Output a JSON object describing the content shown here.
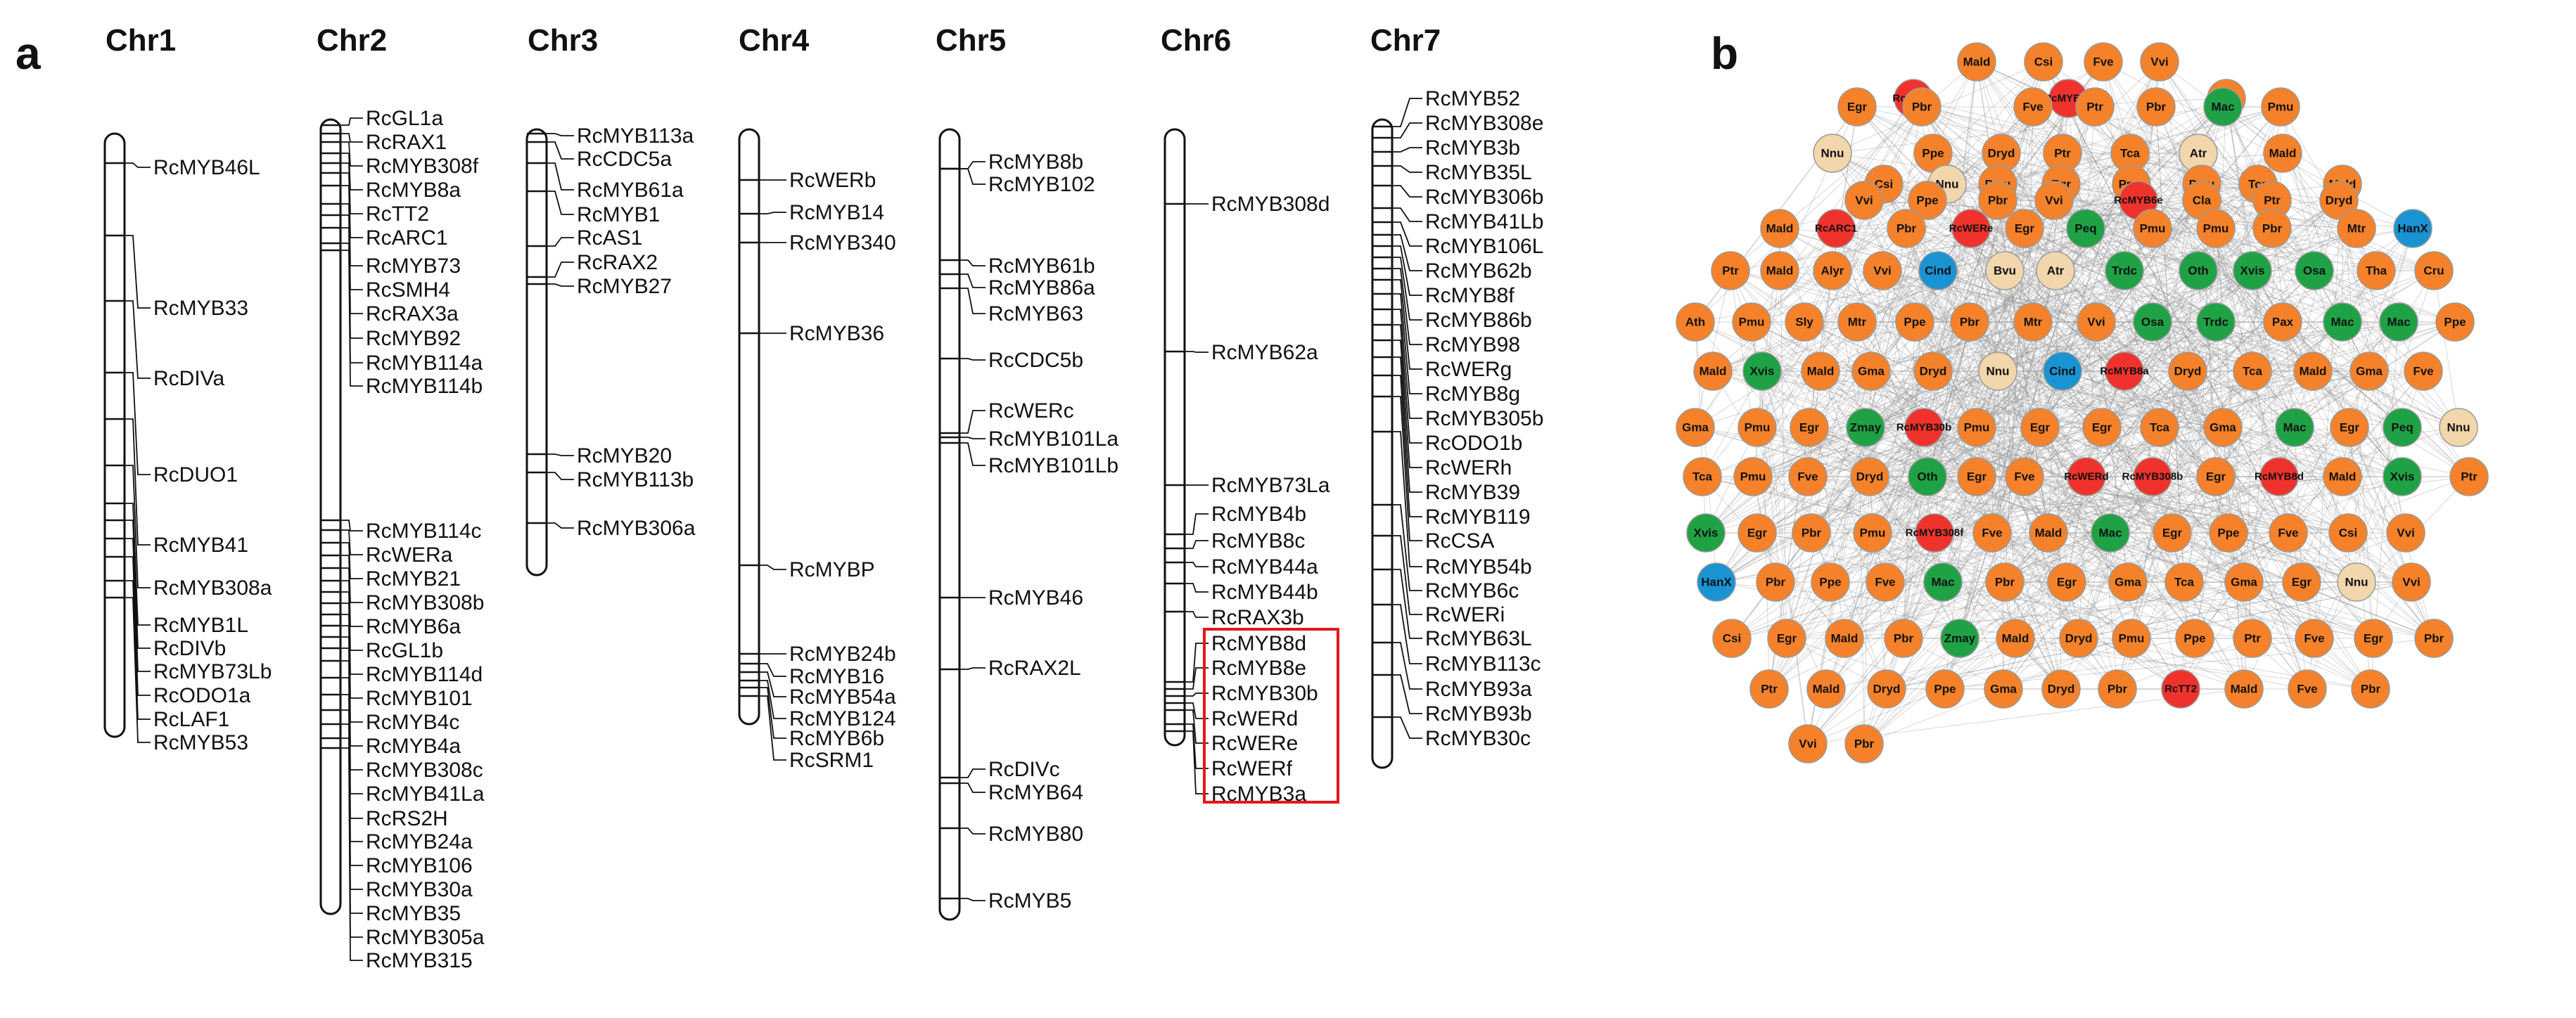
{
  "panel_a": {
    "letter": "a",
    "chromosomes": [
      {
        "name": "Chr1",
        "genes": [
          "RcMYB46L",
          "RcMYB33",
          "RcDIVa",
          "RcDUO1",
          "RcMYB41",
          "RcMYB308a",
          "RcMYB1L",
          "RcDIVb",
          "RcMYB73Lb",
          "RcODO1a",
          "RcLAF1",
          "RcMYB53"
        ]
      },
      {
        "name": "Chr2",
        "genes": [
          "RcGL1a",
          "RcRAX1",
          "RcMYB308f",
          "RcMYB8a",
          "RcTT2",
          "RcARC1",
          "RcMYB73",
          "RcSMH4",
          "RcRAX3a",
          "RcMYB92",
          "RcMYB114a",
          "RcMYB114b",
          "RcMYB114c",
          "RcWERa",
          "RcMYB21",
          "RcMYB308b",
          "RcMYB6a",
          "RcGL1b",
          "RcMYB114d",
          "RcMYB101",
          "RcMYB4c",
          "RcMYB4a",
          "RcMYB308c",
          "RcMYB41La",
          "RcRS2H",
          "RcMYB24a",
          "RcMYB106",
          "RcMYB30a",
          "RcMYB35",
          "RcMYB305a",
          "RcMYB315"
        ]
      },
      {
        "name": "Chr3",
        "genes": [
          "RcMYB113a",
          "RcCDC5a",
          "RcMYB61a",
          "RcMYB1",
          "RcAS1",
          "RcRAX2",
          "RcMYB27",
          "RcMYB20",
          "RcMYB113b",
          "RcMYB306a"
        ]
      },
      {
        "name": "Chr4",
        "genes": [
          "RcWERb",
          "RcMYB14",
          "RcMYB340",
          "RcMYB36",
          "RcMYBP",
          "RcMYB24b",
          "RcMYB16",
          "RcMYB54a",
          "RcMYB124",
          "RcMYB6b",
          "RcSRM1"
        ]
      },
      {
        "name": "Chr5",
        "genes": [
          "RcMYB8b",
          "RcMYB102",
          "RcMYB61b",
          "RcMYB86a",
          "RcMYB63",
          "RcCDC5b",
          "RcWERc",
          "RcMYB101La",
          "RcMYB101Lb",
          "RcMYB46",
          "RcRAX2L",
          "RcDIVc",
          "RcMYB64",
          "RcMYB80",
          "RcMYB5"
        ]
      },
      {
        "name": "Chr6",
        "genes": [
          "RcMYB308d",
          "RcMYB62a",
          "RcMYB73La",
          "RcMYB4b",
          "RcMYB8c",
          "RcMYB44a",
          "RcMYB44b",
          "RcRAX3b",
          "RcMYB8d",
          "RcMYB8e",
          "RcMYB30b",
          "RcWERd",
          "RcWERe",
          "RcWERf",
          "RcMYB3a"
        ]
      },
      {
        "name": "Chr7",
        "genes": [
          "RcMYB52",
          "RcMYB308e",
          "RcMYB3b",
          "RcMYB35L",
          "RcMYB306b",
          "RcMYB41Lb",
          "RcMYB106L",
          "RcMYB62b",
          "RcMYB8f",
          "RcMYB86b",
          "RcMYB98",
          "RcWERg",
          "RcMYB8g",
          "RcMYB305b",
          "RcODO1b",
          "RcWERh",
          "RcMYB39",
          "RcMYB119",
          "RcCSA",
          "RcMYB54b",
          "RcMYB6c",
          "RcWERi",
          "RcMYB63L",
          "RcMYB113c",
          "RcMYB93a",
          "RcMYB93b",
          "RcMYB30c"
        ]
      }
    ]
  },
  "panel_b": {
    "letter": "b",
    "colors": {
      "red": "#f0322d",
      "orange": "#f5822a",
      "green": "#1fa245",
      "blue": "#1a93d3",
      "beige": "#f2d6ac"
    },
    "nodes": [
      {
        "label": "Mald",
        "c": "orange"
      },
      {
        "label": "Csi",
        "c": "orange"
      },
      {
        "label": "Fve",
        "c": "orange"
      },
      {
        "label": "Vvi",
        "c": "orange"
      },
      {
        "label": "RcWERf",
        "c": "red"
      },
      {
        "label": "RcMYB6a",
        "c": "red"
      },
      {
        "label": "Tca",
        "c": "orange"
      },
      {
        "label": "Egr",
        "c": "orange"
      },
      {
        "label": "Pbr",
        "c": "orange"
      },
      {
        "label": "Fve",
        "c": "orange"
      },
      {
        "label": "Ptr",
        "c": "orange"
      },
      {
        "label": "Pbr",
        "c": "orange"
      },
      {
        "label": "Mac",
        "c": "green"
      },
      {
        "label": "Pmu",
        "c": "orange"
      },
      {
        "label": "Nnu",
        "c": "beige"
      },
      {
        "label": "Ppe",
        "c": "orange"
      },
      {
        "label": "Dryd",
        "c": "orange"
      },
      {
        "label": "Ptr",
        "c": "orange"
      },
      {
        "label": "Tca",
        "c": "orange"
      },
      {
        "label": "Atr",
        "c": "beige"
      },
      {
        "label": "Mald",
        "c": "orange"
      },
      {
        "label": "Csi",
        "c": "orange"
      },
      {
        "label": "Nnu",
        "c": "beige"
      },
      {
        "label": "Pmu",
        "c": "orange"
      },
      {
        "label": "Egr",
        "c": "orange"
      },
      {
        "label": "Pmu",
        "c": "orange"
      },
      {
        "label": "Pmu",
        "c": "orange"
      },
      {
        "label": "Tca",
        "c": "orange"
      },
      {
        "label": "Mald",
        "c": "orange"
      },
      {
        "label": "Vvi",
        "c": "orange"
      },
      {
        "label": "Ppe",
        "c": "orange"
      },
      {
        "label": "Pbr",
        "c": "orange"
      },
      {
        "label": "Vvi",
        "c": "orange"
      },
      {
        "label": "RcMYB6e",
        "c": "red"
      },
      {
        "label": "Cla",
        "c": "orange"
      },
      {
        "label": "Ptr",
        "c": "orange"
      },
      {
        "label": "Dryd",
        "c": "orange"
      },
      {
        "label": "Mald",
        "c": "orange"
      },
      {
        "label": "RcARC1",
        "c": "red"
      },
      {
        "label": "Pbr",
        "c": "orange"
      },
      {
        "label": "RcWERe",
        "c": "red"
      },
      {
        "label": "Egr",
        "c": "orange"
      },
      {
        "label": "Peq",
        "c": "green"
      },
      {
        "label": "Pmu",
        "c": "orange"
      },
      {
        "label": "Pmu",
        "c": "orange"
      },
      {
        "label": "Pbr",
        "c": "orange"
      },
      {
        "label": "Mtr",
        "c": "orange"
      },
      {
        "label": "HanX",
        "c": "blue"
      },
      {
        "label": "Ptr",
        "c": "orange"
      },
      {
        "label": "Mald",
        "c": "orange"
      },
      {
        "label": "Alyr",
        "c": "orange"
      },
      {
        "label": "Vvi",
        "c": "orange"
      },
      {
        "label": "Cind",
        "c": "blue"
      },
      {
        "label": "Bvu",
        "c": "beige"
      },
      {
        "label": "Atr",
        "c": "beige"
      },
      {
        "label": "Trdc",
        "c": "green"
      },
      {
        "label": "Oth",
        "c": "green"
      },
      {
        "label": "Xvis",
        "c": "green"
      },
      {
        "label": "Osa",
        "c": "green"
      },
      {
        "label": "Tha",
        "c": "orange"
      },
      {
        "label": "Cru",
        "c": "orange"
      },
      {
        "label": "Ath",
        "c": "orange"
      },
      {
        "label": "Pmu",
        "c": "orange"
      },
      {
        "label": "Sly",
        "c": "orange"
      },
      {
        "label": "Mtr",
        "c": "orange"
      },
      {
        "label": "Ppe",
        "c": "orange"
      },
      {
        "label": "Pbr",
        "c": "orange"
      },
      {
        "label": "Mtr",
        "c": "orange"
      },
      {
        "label": "Vvi",
        "c": "orange"
      },
      {
        "label": "Osa",
        "c": "green"
      },
      {
        "label": "Trdc",
        "c": "green"
      },
      {
        "label": "Pax",
        "c": "orange"
      },
      {
        "label": "Mac",
        "c": "green"
      },
      {
        "label": "Mac",
        "c": "green"
      },
      {
        "label": "Ppe",
        "c": "orange"
      },
      {
        "label": "Mald",
        "c": "orange"
      },
      {
        "label": "Xvis",
        "c": "green"
      },
      {
        "label": "Mald",
        "c": "orange"
      },
      {
        "label": "Gma",
        "c": "orange"
      },
      {
        "label": "Dryd",
        "c": "orange"
      },
      {
        "label": "Nnu",
        "c": "beige"
      },
      {
        "label": "Cind",
        "c": "blue"
      },
      {
        "label": "RcMYB8a",
        "c": "red"
      },
      {
        "label": "Dryd",
        "c": "orange"
      },
      {
        "label": "Tca",
        "c": "orange"
      },
      {
        "label": "Mald",
        "c": "orange"
      },
      {
        "label": "Gma",
        "c": "orange"
      },
      {
        "label": "Fve",
        "c": "orange"
      },
      {
        "label": "Gma",
        "c": "orange"
      },
      {
        "label": "Pmu",
        "c": "orange"
      },
      {
        "label": "Egr",
        "c": "orange"
      },
      {
        "label": "Zmay",
        "c": "green"
      },
      {
        "label": "RcMYB30b",
        "c": "red"
      },
      {
        "label": "Pmu",
        "c": "orange"
      },
      {
        "label": "Egr",
        "c": "orange"
      },
      {
        "label": "Egr",
        "c": "orange"
      },
      {
        "label": "Tca",
        "c": "orange"
      },
      {
        "label": "Gma",
        "c": "orange"
      },
      {
        "label": "Mac",
        "c": "green"
      },
      {
        "label": "Egr",
        "c": "orange"
      },
      {
        "label": "Peq",
        "c": "green"
      },
      {
        "label": "Nnu",
        "c": "beige"
      },
      {
        "label": "Tca",
        "c": "orange"
      },
      {
        "label": "Pmu",
        "c": "orange"
      },
      {
        "label": "Fve",
        "c": "orange"
      },
      {
        "label": "Dryd",
        "c": "orange"
      },
      {
        "label": "Oth",
        "c": "green"
      },
      {
        "label": "Egr",
        "c": "orange"
      },
      {
        "label": "Fve",
        "c": "orange"
      },
      {
        "label": "RcWERd",
        "c": "red"
      },
      {
        "label": "RcMYB308b",
        "c": "red"
      },
      {
        "label": "Egr",
        "c": "orange"
      },
      {
        "label": "RcMYB8d",
        "c": "red"
      },
      {
        "label": "Mald",
        "c": "orange"
      },
      {
        "label": "Xvis",
        "c": "green"
      },
      {
        "label": "Ptr",
        "c": "orange"
      },
      {
        "label": "Xvis",
        "c": "green"
      },
      {
        "label": "Egr",
        "c": "orange"
      },
      {
        "label": "Pbr",
        "c": "orange"
      },
      {
        "label": "Pmu",
        "c": "orange"
      },
      {
        "label": "RcMYB308f",
        "c": "red"
      },
      {
        "label": "Fve",
        "c": "orange"
      },
      {
        "label": "Mald",
        "c": "orange"
      },
      {
        "label": "Mac",
        "c": "green"
      },
      {
        "label": "Egr",
        "c": "orange"
      },
      {
        "label": "Ppe",
        "c": "orange"
      },
      {
        "label": "Fve",
        "c": "orange"
      },
      {
        "label": "Csi",
        "c": "orange"
      },
      {
        "label": "Vvi",
        "c": "orange"
      },
      {
        "label": "HanX",
        "c": "blue"
      },
      {
        "label": "Pbr",
        "c": "orange"
      },
      {
        "label": "Ppe",
        "c": "orange"
      },
      {
        "label": "Fve",
        "c": "orange"
      },
      {
        "label": "Mac",
        "c": "green"
      },
      {
        "label": "Pbr",
        "c": "orange"
      },
      {
        "label": "Egr",
        "c": "orange"
      },
      {
        "label": "Gma",
        "c": "orange"
      },
      {
        "label": "Tca",
        "c": "orange"
      },
      {
        "label": "Gma",
        "c": "orange"
      },
      {
        "label": "Egr",
        "c": "orange"
      },
      {
        "label": "Nnu",
        "c": "beige"
      },
      {
        "label": "Vvi",
        "c": "orange"
      },
      {
        "label": "Csi",
        "c": "orange"
      },
      {
        "label": "Egr",
        "c": "orange"
      },
      {
        "label": "Mald",
        "c": "orange"
      },
      {
        "label": "Pbr",
        "c": "orange"
      },
      {
        "label": "Zmay",
        "c": "green"
      },
      {
        "label": "Mald",
        "c": "orange"
      },
      {
        "label": "Dryd",
        "c": "orange"
      },
      {
        "label": "Pmu",
        "c": "orange"
      },
      {
        "label": "Ppe",
        "c": "orange"
      },
      {
        "label": "Ptr",
        "c": "orange"
      },
      {
        "label": "Fve",
        "c": "orange"
      },
      {
        "label": "Egr",
        "c": "orange"
      },
      {
        "label": "Pbr",
        "c": "orange"
      },
      {
        "label": "Ptr",
        "c": "orange"
      },
      {
        "label": "Mald",
        "c": "orange"
      },
      {
        "label": "Dryd",
        "c": "orange"
      },
      {
        "label": "Ppe",
        "c": "orange"
      },
      {
        "label": "Gma",
        "c": "orange"
      },
      {
        "label": "Dryd",
        "c": "orange"
      },
      {
        "label": "Pbr",
        "c": "orange"
      },
      {
        "label": "RcTT2",
        "c": "red"
      },
      {
        "label": "Mald",
        "c": "orange"
      },
      {
        "label": "Fve",
        "c": "orange"
      },
      {
        "label": "Pbr",
        "c": "orange"
      },
      {
        "label": "Vvi",
        "c": "orange"
      },
      {
        "label": "Pbr",
        "c": "orange"
      }
    ]
  }
}
